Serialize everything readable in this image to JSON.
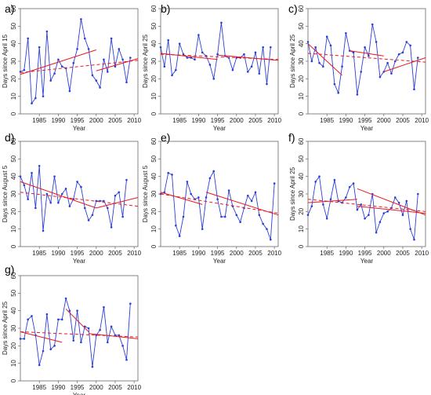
{
  "chart_data": [
    {
      "type": "line",
      "panel": "a)",
      "xlabel": "Year",
      "ylabel": "Days since April 15",
      "xlim": [
        1980,
        2011
      ],
      "ylim": [
        0,
        60
      ],
      "xticks": [
        1985,
        1990,
        1995,
        2000,
        2005,
        2010
      ],
      "yticks": [
        0,
        10,
        20,
        30,
        40,
        50,
        60
      ],
      "x_start": 1980,
      "values": [
        24,
        25,
        43,
        6,
        9,
        38,
        10,
        47,
        19,
        23,
        31,
        27,
        26,
        13,
        29,
        37,
        54,
        43,
        37,
        22,
        19,
        15,
        31,
        24,
        43,
        27,
        37,
        31,
        18,
        32
      ],
      "trend_lines": [
        {
          "style": "solid",
          "x": [
            1980,
            2000
          ],
          "y": [
            22.5,
            36.5
          ]
        },
        {
          "style": "solid",
          "x": [
            2000,
            2011
          ],
          "y": [
            24.5,
            31.5
          ]
        },
        {
          "style": "dashed",
          "x": [
            1980,
            2011
          ],
          "y": [
            23.5,
            30.5
          ]
        }
      ]
    },
    {
      "type": "line",
      "panel": "b)",
      "xlabel": "Year",
      "ylabel": "Days since April 25",
      "xlim": [
        1980,
        2011
      ],
      "ylim": [
        0,
        60
      ],
      "xticks": [
        1985,
        1990,
        1995,
        2000,
        2005,
        2010
      ],
      "yticks": [
        0,
        10,
        20,
        30,
        40,
        50,
        60
      ],
      "x_start": 1980,
      "values": [
        38,
        27,
        42,
        22,
        25,
        40,
        34,
        32,
        32,
        31,
        45,
        35,
        33,
        28,
        20,
        34,
        52,
        33,
        32,
        25,
        32,
        32,
        34,
        24,
        27,
        35,
        23,
        38,
        17,
        38
      ],
      "trend_lines": [
        {
          "style": "solid",
          "x": [
            1980,
            1995
          ],
          "y": [
            34.5,
            31
          ]
        },
        {
          "style": "solid",
          "x": [
            1995,
            2011
          ],
          "y": [
            33.5,
            30.5
          ]
        },
        {
          "style": "dashed",
          "x": [
            1980,
            2011
          ],
          "y": [
            34,
            31
          ]
        }
      ]
    },
    {
      "type": "line",
      "panel": "c)",
      "xlabel": "Year",
      "ylabel": "Days since April 25",
      "xlim": [
        1980,
        2011
      ],
      "ylim": [
        0,
        60
      ],
      "xticks": [
        1985,
        1990,
        1995,
        2000,
        2005,
        2010
      ],
      "yticks": [
        0,
        10,
        20,
        30,
        40,
        50,
        60
      ],
      "x_start": 1980,
      "values": [
        41,
        30,
        38,
        29,
        27,
        44,
        39,
        17,
        12,
        27,
        46,
        36,
        35,
        11,
        24,
        38,
        33,
        51,
        41,
        21,
        24,
        29,
        23,
        30,
        34,
        35,
        41,
        39,
        14,
        32
      ],
      "trend_lines": [
        {
          "style": "solid",
          "x": [
            1980,
            1989
          ],
          "y": [
            40,
            22
          ]
        },
        {
          "style": "solid",
          "x": [
            1991,
            2000
          ],
          "y": [
            36,
            33
          ]
        },
        {
          "style": "solid",
          "x": [
            2000,
            2011
          ],
          "y": [
            24,
            32
          ]
        },
        {
          "style": "dashed",
          "x": [
            1980,
            2011
          ],
          "y": [
            34.5,
            29.5
          ]
        }
      ]
    },
    {
      "type": "line",
      "panel": "d)",
      "xlabel": "Year",
      "ylabel": "Days since August 5",
      "xlim": [
        1980,
        2011
      ],
      "ylim": [
        0,
        60
      ],
      "xticks": [
        1985,
        1990,
        1995,
        2000,
        2005,
        2010
      ],
      "yticks": [
        0,
        10,
        20,
        30,
        40,
        50,
        60
      ],
      "x_start": 1980,
      "values": [
        40,
        35,
        27,
        42,
        22,
        46,
        9,
        30,
        25,
        40,
        25,
        30,
        33,
        23,
        27,
        37,
        34,
        22,
        15,
        18,
        26,
        26,
        26,
        22,
        11,
        29,
        31,
        17,
        38
      ],
      "trend_lines": [
        {
          "style": "solid",
          "x": [
            1980,
            2000
          ],
          "y": [
            37,
            22
          ]
        },
        {
          "style": "solid",
          "x": [
            2000,
            2011
          ],
          "y": [
            22,
            28
          ]
        },
        {
          "style": "dashed",
          "x": [
            1980,
            2011
          ],
          "y": [
            31,
            23
          ]
        }
      ]
    },
    {
      "type": "line",
      "panel": "e)",
      "xlabel": "Year",
      "ylabel": "Days since August 5",
      "xlim": [
        1980,
        2011
      ],
      "ylim": [
        0,
        60
      ],
      "xticks": [
        1985,
        1990,
        1995,
        2000,
        2005,
        2010
      ],
      "yticks": [
        0,
        10,
        20,
        30,
        40,
        50,
        60
      ],
      "x_start": 1980,
      "values": [
        30,
        31,
        42,
        41,
        12,
        6,
        17,
        37,
        30,
        27,
        28,
        10,
        28,
        39,
        43,
        27,
        17,
        17,
        32,
        23,
        18,
        14,
        22,
        29,
        26,
        31,
        18,
        13,
        10,
        4,
        36
      ],
      "trend_lines": [
        {
          "style": "solid",
          "x": [
            1980,
            1991
          ],
          "y": [
            31,
            24
          ]
        },
        {
          "style": "solid",
          "x": [
            1992,
            2011
          ],
          "y": [
            31,
            18
          ]
        },
        {
          "style": "dashed",
          "x": [
            1980,
            2011
          ],
          "y": [
            30,
            19
          ]
        }
      ]
    },
    {
      "type": "line",
      "panel": "f)",
      "xlabel": "Year",
      "ylabel": "Days since April 25",
      "xlim": [
        1980,
        2011
      ],
      "ylim": [
        0,
        60
      ],
      "xticks": [
        1985,
        1990,
        1995,
        2000,
        2005,
        2010
      ],
      "yticks": [
        0,
        10,
        20,
        30,
        40,
        50,
        60
      ],
      "x_start": 1980,
      "values": [
        18,
        23,
        37,
        40,
        24,
        16,
        27,
        38,
        26,
        25,
        28,
        34,
        36,
        21,
        24,
        16,
        18,
        30,
        8,
        14,
        19,
        20,
        22,
        28,
        25,
        18,
        26,
        10,
        4,
        30
      ],
      "trend_lines": [
        {
          "style": "solid",
          "x": [
            1980,
            1993
          ],
          "y": [
            25,
            27
          ]
        },
        {
          "style": "solid",
          "x": [
            1993,
            2011
          ],
          "y": [
            33,
            18
          ]
        },
        {
          "style": "solid",
          "x": [
            1993,
            2011
          ],
          "y": [
            23,
            19
          ]
        },
        {
          "style": "dashed",
          "x": [
            1980,
            2011
          ],
          "y": [
            27,
            20
          ]
        }
      ]
    },
    {
      "type": "line",
      "panel": "g)",
      "xlabel": "Year",
      "ylabel": "Days since April 25",
      "xlim": [
        1980,
        2011
      ],
      "ylim": [
        0,
        60
      ],
      "xticks": [
        1985,
        1990,
        1995,
        2000,
        2005,
        2010
      ],
      "yticks": [
        0,
        10,
        20,
        30,
        40,
        50,
        60
      ],
      "x_start": 1980,
      "values": [
        24,
        24,
        35,
        37,
        26,
        9,
        17,
        38,
        18,
        20,
        35,
        35,
        47,
        40,
        23,
        40,
        22,
        31,
        30,
        8,
        26,
        29,
        42,
        22,
        31,
        26,
        26,
        20,
        12,
        44
      ],
      "trend_lines": [
        {
          "style": "solid",
          "x": [
            1980,
            1991
          ],
          "y": [
            28,
            22
          ]
        },
        {
          "style": "solid",
          "x": [
            1992,
            1998
          ],
          "y": [
            41,
            28
          ]
        },
        {
          "style": "solid",
          "x": [
            1998,
            2011
          ],
          "y": [
            27,
            24
          ]
        },
        {
          "style": "dashed",
          "x": [
            1980,
            2011
          ],
          "y": [
            28,
            25
          ]
        }
      ]
    }
  ]
}
